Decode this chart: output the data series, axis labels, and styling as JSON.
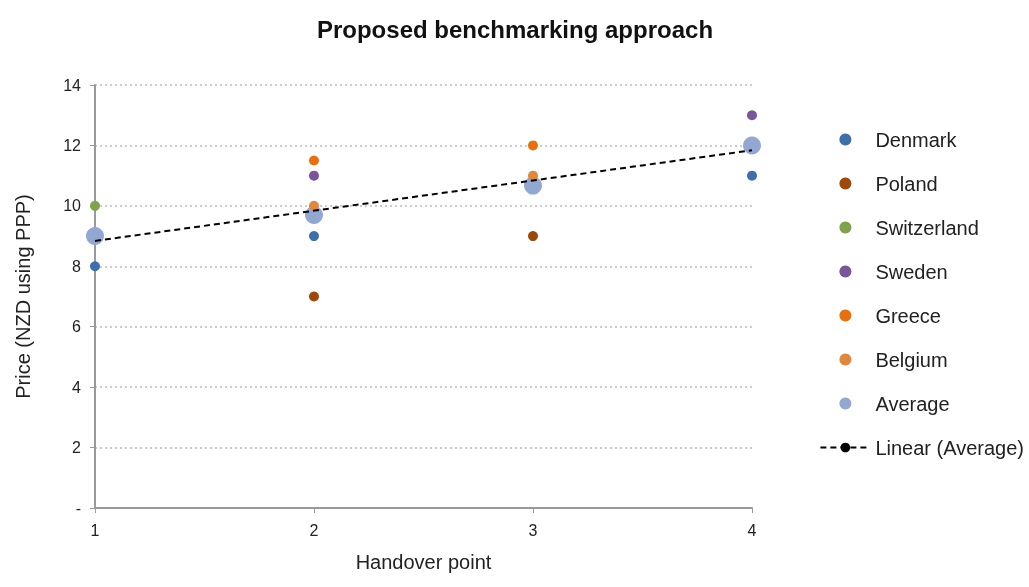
{
  "chart_data": {
    "type": "scatter",
    "title": "Proposed benchmarking approach",
    "xlabel": "Handover point",
    "ylabel": "Price (NZD using PPP)",
    "xlim": [
      1,
      4
    ],
    "xticks": [
      1,
      2,
      3,
      4
    ],
    "ylim": [
      0,
      14
    ],
    "yticks": [
      {
        "value": 0,
        "label": "-"
      },
      2,
      4,
      6,
      8,
      10,
      12,
      14
    ],
    "grid": "y",
    "legend": "right",
    "marker": "circle",
    "series": [
      {
        "name": "Denmark",
        "color": "#3f6fa8",
        "x": [
          1,
          2,
          4
        ],
        "values": [
          8,
          9,
          11
        ]
      },
      {
        "name": "Poland",
        "color": "#9c4a0c",
        "x": [
          2,
          3
        ],
        "values": [
          7,
          9
        ]
      },
      {
        "name": "Switzerland",
        "color": "#7fa34a",
        "x": [
          1
        ],
        "values": [
          10
        ]
      },
      {
        "name": "Sweden",
        "color": "#7a559a",
        "x": [
          2,
          4
        ],
        "values": [
          11,
          13
        ]
      },
      {
        "name": "Greece",
        "color": "#e8710f",
        "x": [
          2,
          3
        ],
        "values": [
          11.5,
          12
        ]
      },
      {
        "name": "Belgium",
        "color": "#e0883d",
        "x": [
          2,
          3
        ],
        "values": [
          10,
          11
        ]
      },
      {
        "name": "Average",
        "color": "#92a8d1",
        "x": [
          1,
          2,
          3,
          4
        ],
        "values": [
          9,
          9.7,
          10.67,
          12
        ]
      },
      {
        "name": "Linear (Average)",
        "type": "line",
        "color": "#000000",
        "x": [
          1,
          4
        ],
        "values": [
          8.84,
          11.84
        ],
        "line_style": "dashed",
        "marker": "none"
      }
    ]
  }
}
